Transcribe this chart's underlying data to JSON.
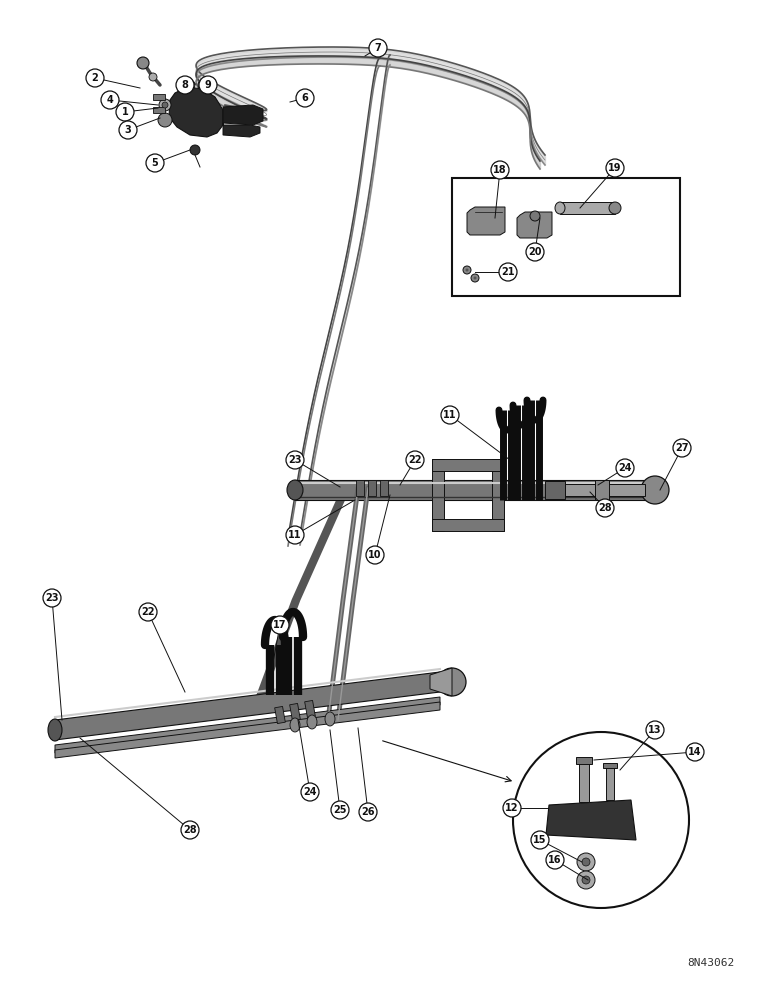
{
  "bg_color": "#ffffff",
  "lc": "#111111",
  "dark": "#1a1a1a",
  "med": "#555555",
  "light": "#aaaaaa",
  "watermark": "8N43062",
  "fw": 7.72,
  "fh": 10.0,
  "dpi": 100
}
